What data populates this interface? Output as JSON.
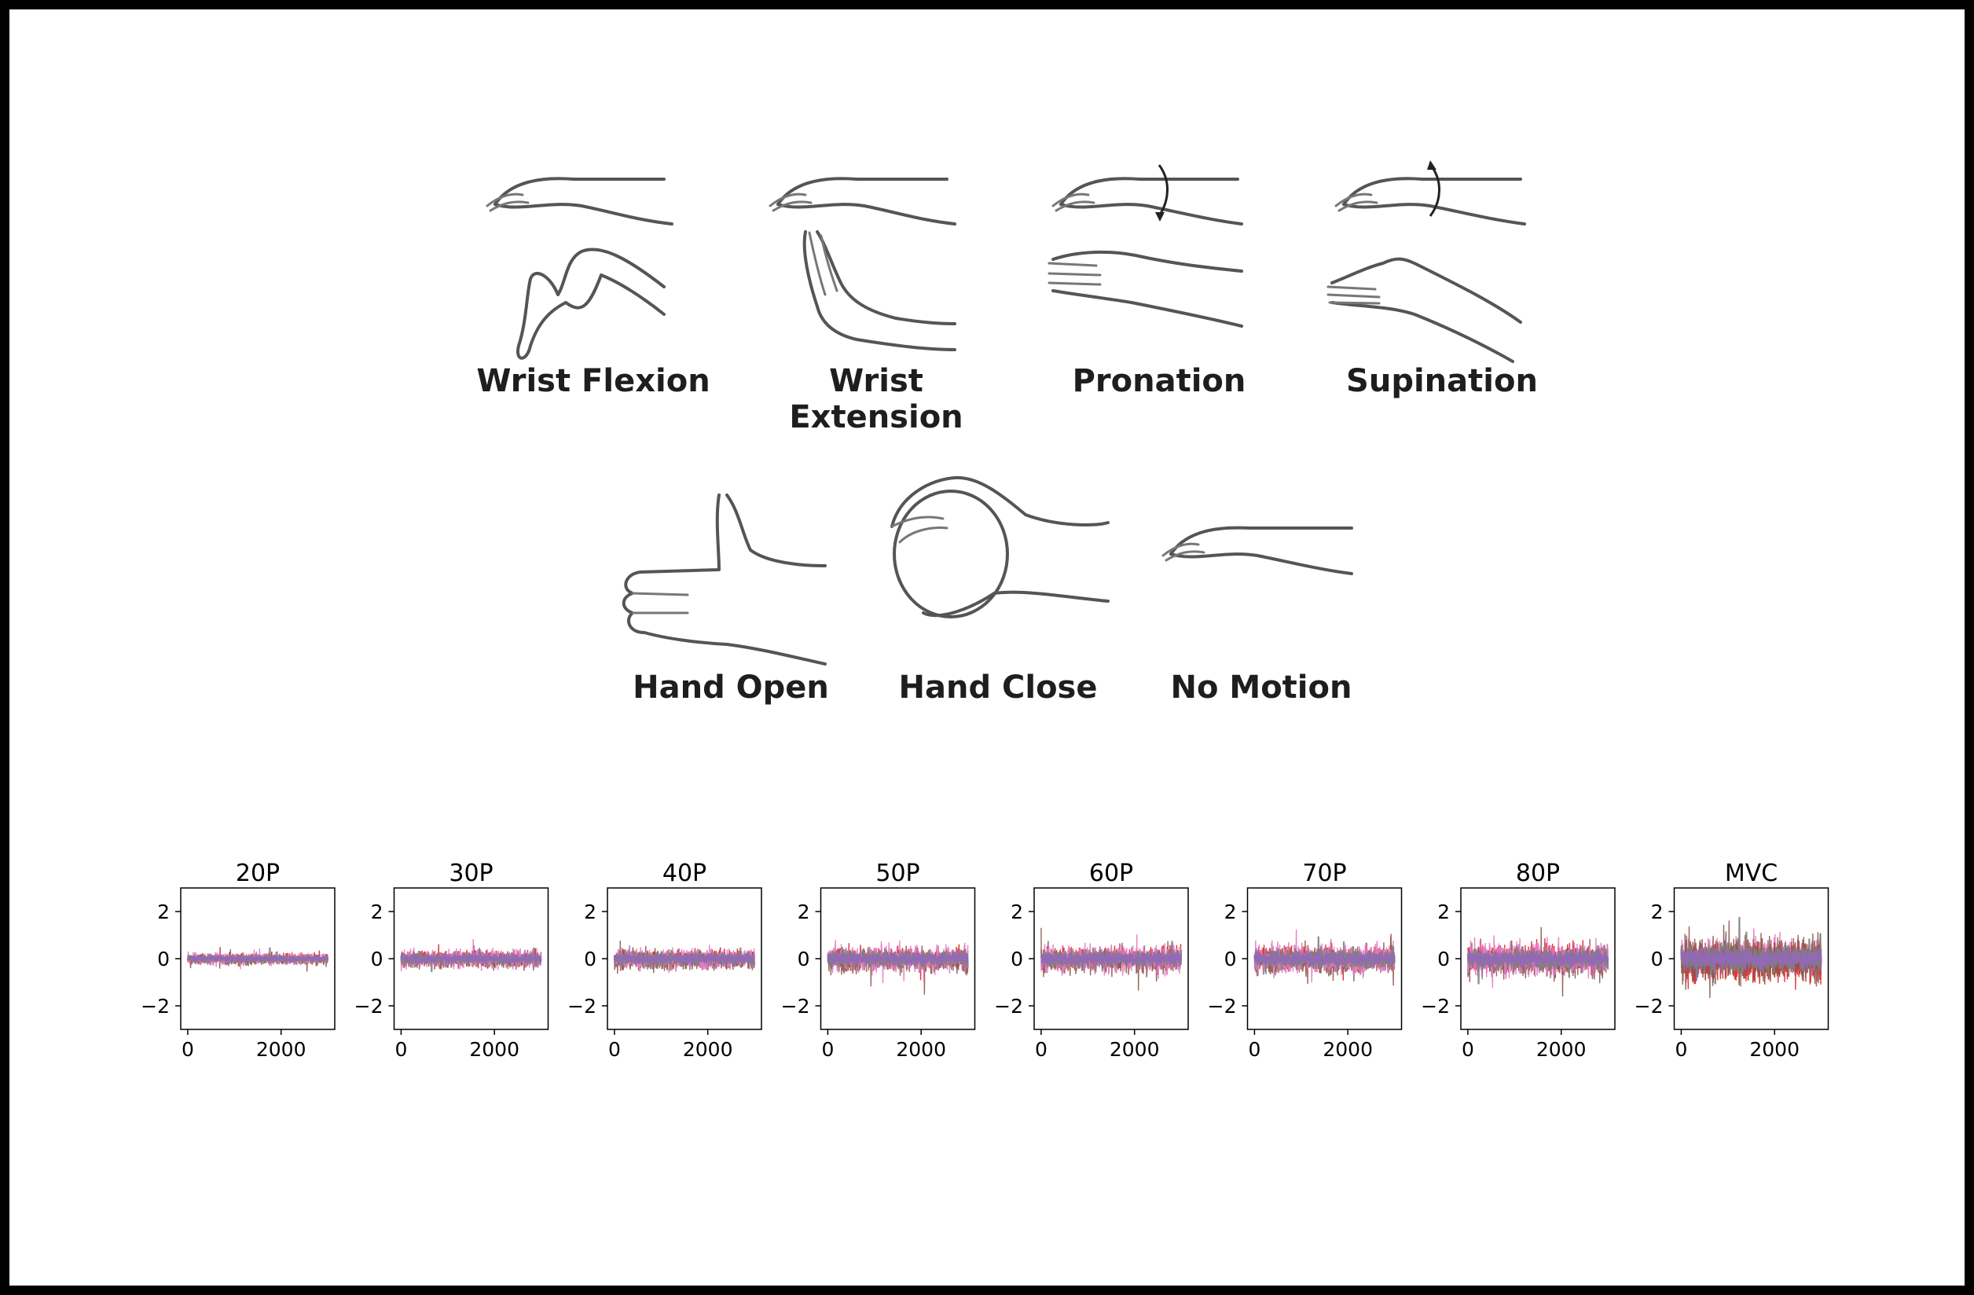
{
  "gestures": {
    "wrist_flexion": "Wrist Flexion",
    "wrist_extension": "Wrist Extension",
    "pronation": "Pronation",
    "supination": "Supination",
    "hand_open": "Hand Open",
    "hand_close": "Hand Close",
    "no_motion": "No Motion"
  },
  "chart_data": [
    {
      "type": "line",
      "title": "20P",
      "x_ticks": [
        0,
        2000
      ],
      "y_ticks": [
        2,
        0,
        -2
      ],
      "ylim": [
        -3,
        3
      ],
      "xlim": [
        -150,
        3150
      ],
      "amplitude": 0.35,
      "colors": [
        "#d62728",
        "#8c564b",
        "#e377c2",
        "#7f7f7f",
        "#9467bd"
      ]
    },
    {
      "type": "line",
      "title": "30P",
      "x_ticks": [
        0,
        2000
      ],
      "y_ticks": [
        2,
        0,
        -2
      ],
      "ylim": [
        -3,
        3
      ],
      "xlim": [
        -150,
        3150
      ],
      "amplitude": 0.55,
      "colors": [
        "#d62728",
        "#8c564b",
        "#e377c2",
        "#7f7f7f",
        "#9467bd"
      ]
    },
    {
      "type": "line",
      "title": "40P",
      "x_ticks": [
        0,
        2000
      ],
      "y_ticks": [
        2,
        0,
        -2
      ],
      "ylim": [
        -3,
        3
      ],
      "xlim": [
        -150,
        3150
      ],
      "amplitude": 0.6,
      "colors": [
        "#d62728",
        "#8c564b",
        "#e377c2",
        "#7f7f7f",
        "#9467bd"
      ]
    },
    {
      "type": "line",
      "title": "50P",
      "x_ticks": [
        0,
        2000
      ],
      "y_ticks": [
        2,
        0,
        -2
      ],
      "ylim": [
        -3,
        3
      ],
      "xlim": [
        -150,
        3150
      ],
      "amplitude": 0.75,
      "colors": [
        "#d62728",
        "#8c564b",
        "#e377c2",
        "#7f7f7f",
        "#9467bd"
      ]
    },
    {
      "type": "line",
      "title": "60P",
      "x_ticks": [
        0,
        2000
      ],
      "y_ticks": [
        2,
        0,
        -2
      ],
      "ylim": [
        -3,
        3
      ],
      "xlim": [
        -150,
        3150
      ],
      "amplitude": 0.8,
      "colors": [
        "#d62728",
        "#8c564b",
        "#e377c2",
        "#7f7f7f",
        "#9467bd"
      ]
    },
    {
      "type": "line",
      "title": "70P",
      "x_ticks": [
        0,
        2000
      ],
      "y_ticks": [
        2,
        0,
        -2
      ],
      "ylim": [
        -3,
        3
      ],
      "xlim": [
        -150,
        3150
      ],
      "amplitude": 0.85,
      "colors": [
        "#d62728",
        "#8c564b",
        "#e377c2",
        "#7f7f7f",
        "#9467bd"
      ]
    },
    {
      "type": "line",
      "title": "80P",
      "x_ticks": [
        0,
        2000
      ],
      "y_ticks": [
        2,
        0,
        -2
      ],
      "ylim": [
        -3,
        3
      ],
      "xlim": [
        -150,
        3150
      ],
      "amplitude": 0.95,
      "colors": [
        "#d62728",
        "#8c564b",
        "#e377c2",
        "#7f7f7f",
        "#9467bd"
      ]
    },
    {
      "type": "line",
      "title": "MVC",
      "x_ticks": [
        0,
        2000
      ],
      "y_ticks": [
        2,
        0,
        -2
      ],
      "ylim": [
        -3,
        3
      ],
      "xlim": [
        -150,
        3150
      ],
      "amplitude": 1.3,
      "colors": [
        "#e377c2",
        "#d62728",
        "#8c564b",
        "#7f7f7f",
        "#9467bd"
      ]
    }
  ]
}
